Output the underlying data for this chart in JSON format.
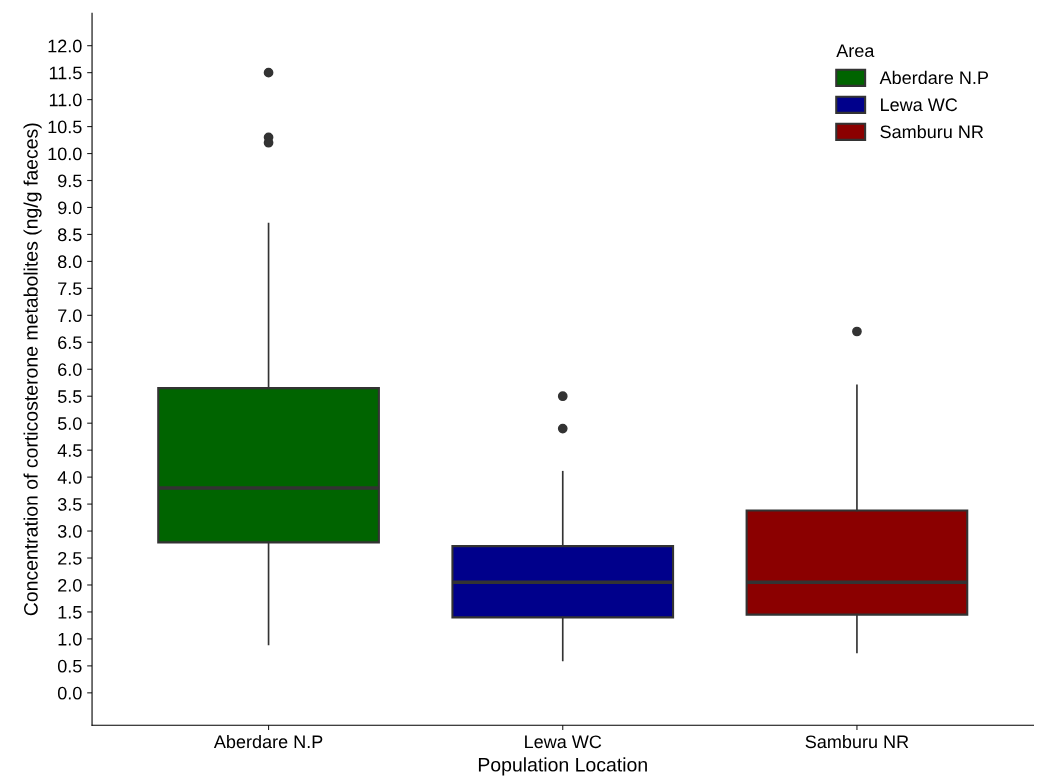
{
  "chart_data": {
    "type": "box",
    "xlabel": "Population Location",
    "ylabel": "Concentration of corticosterone metabolites (ng/g faeces)",
    "legend_title": "Area",
    "legend": "top right",
    "categories": [
      "Aberdare N.P",
      "Lewa WC",
      "Samburu NR"
    ],
    "series": [
      {
        "name": "Aberdare N.P",
        "color": "#006400",
        "boxes": [
          {
            "low": 0.9,
            "q1": 2.79,
            "median": 3.8,
            "q3": 5.65,
            "high": 8.7,
            "outliers": [
              11.5,
              10.3,
              10.2
            ]
          },
          null,
          null
        ]
      },
      {
        "name": "Lewa WC",
        "color": "#00008b",
        "boxes": [
          null,
          {
            "low": 0.6,
            "q1": 1.4,
            "median": 2.05,
            "q3": 2.72,
            "high": 4.1,
            "outliers": [
              5.5,
              4.9
            ]
          },
          null
        ]
      },
      {
        "name": "Samburu NR",
        "color": "#8b0000",
        "boxes": [
          null,
          null,
          {
            "low": 0.75,
            "q1": 1.45,
            "median": 2.05,
            "q3": 3.38,
            "high": 5.7,
            "outliers": [
              6.7
            ]
          }
        ]
      }
    ],
    "ylim": [
      -0.6,
      12.6
    ],
    "yticks": [
      {
        "value": 0,
        "label": "0.0"
      },
      {
        "value": 0.5,
        "label": "0.5"
      },
      {
        "value": 1,
        "label": "1.0"
      },
      {
        "value": 1.5,
        "label": "1.5"
      },
      {
        "value": 2,
        "label": "2.0"
      },
      {
        "value": 2.5,
        "label": "2.5"
      },
      {
        "value": 3,
        "label": "3.0"
      },
      {
        "value": 3.5,
        "label": "3.5"
      },
      {
        "value": 4,
        "label": "4.0"
      },
      {
        "value": 4.5,
        "label": "4.5"
      },
      {
        "value": 5,
        "label": "5.0"
      },
      {
        "value": 5.5,
        "label": "5.5"
      },
      {
        "value": 6,
        "label": "6.0"
      },
      {
        "value": 6.5,
        "label": "6.5"
      },
      {
        "value": 7,
        "label": "7.0"
      },
      {
        "value": 7.5,
        "label": "7.5"
      },
      {
        "value": 8,
        "label": "8.0"
      },
      {
        "value": 8.5,
        "label": "8.5"
      },
      {
        "value": 9,
        "label": "9.0"
      },
      {
        "value": 9.5,
        "label": "9.5"
      },
      {
        "value": 10,
        "label": "10.0"
      },
      {
        "value": 10.5,
        "label": "10.5"
      },
      {
        "value": 11,
        "label": "11.0"
      },
      {
        "value": 11.5,
        "label": "11.5"
      },
      {
        "value": 12,
        "label": "12.0"
      }
    ],
    "grid": false
  }
}
